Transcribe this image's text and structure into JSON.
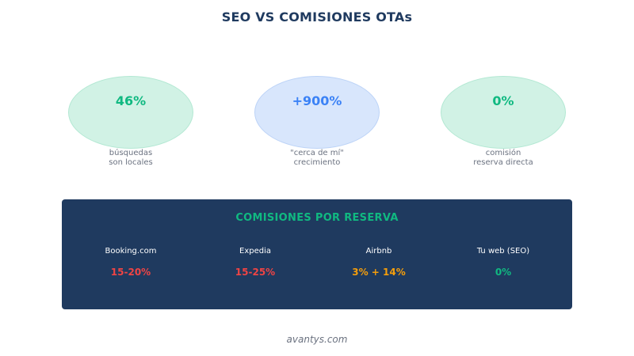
{
  "title": "SEO VS COMISIONES OTAs",
  "colors": {
    "green": "#10b981",
    "blue": "#3b82f6",
    "red": "#ef4444",
    "amber": "#f59e0b",
    "navy": "#1f3a5f"
  },
  "stats": [
    {
      "value": "46%",
      "label_line1": "búsquedas",
      "label_line2": "son locales"
    },
    {
      "value": "+900%",
      "label_line1": "\"cerca de mí\"",
      "label_line2": "crecimiento"
    },
    {
      "value": "0%",
      "label_line1": "comisión",
      "label_line2": "reserva directa"
    }
  ],
  "panel": {
    "title": "COMISIONES POR RESERVA",
    "items": [
      {
        "name": "Booking.com",
        "rate": "15-20%"
      },
      {
        "name": "Expedia",
        "rate": "15-25%"
      },
      {
        "name": "Airbnb",
        "rate": "3% + 14%"
      },
      {
        "name": "Tu web (SEO)",
        "rate": "0%"
      }
    ]
  },
  "footer": "avantys.com"
}
